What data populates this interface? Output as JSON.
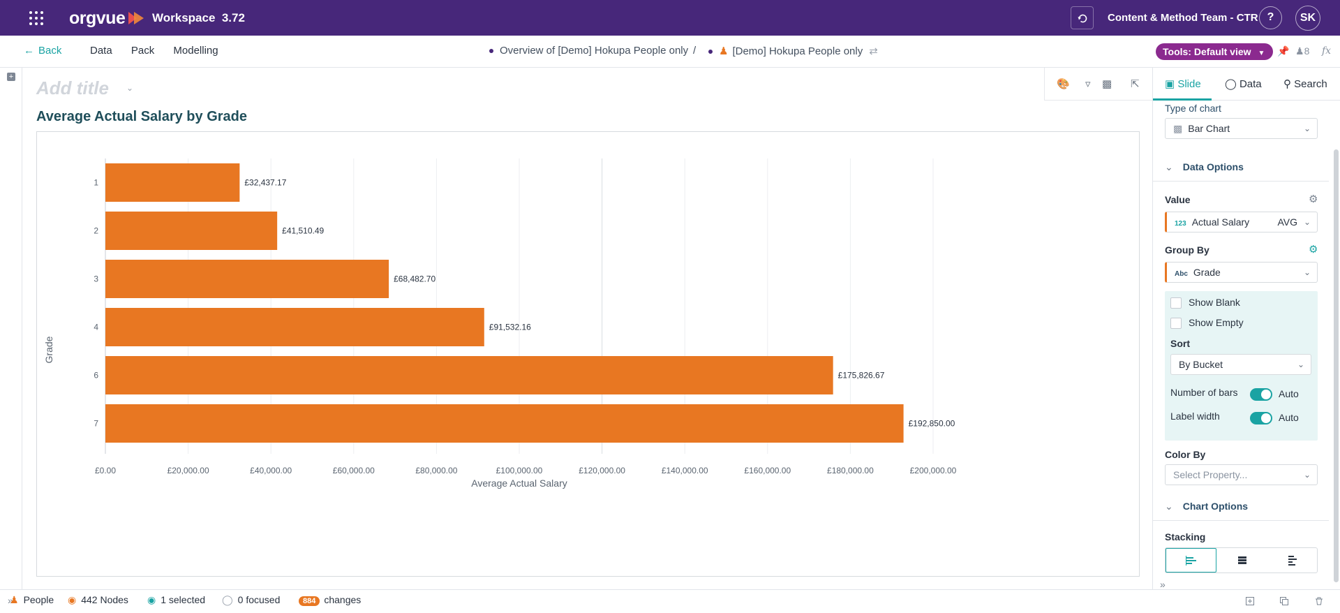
{
  "topbar": {
    "brand": "orgvue",
    "workspace": "Workspace  3.72",
    "team": "Content & Method Team - CTR",
    "help": "?",
    "user_initials": "SK"
  },
  "nav": {
    "back": "Back",
    "menu": [
      "Data",
      "Pack",
      "Modelling"
    ],
    "crumb_view": "Overview of [Demo] Hokupa People only",
    "crumb_sep": "/",
    "crumb_dataset": "[Demo] Hokupa People only",
    "tools_pill": "Tools: Default view",
    "user_count": "8"
  },
  "canvas": {
    "add_title_placeholder": "Add title",
    "chart_title": "Average Actual Salary by Grade"
  },
  "chart_data": {
    "type": "bar",
    "orientation": "horizontal",
    "title": "Average Actual Salary by Grade",
    "xlabel": "Average Actual Salary",
    "ylabel": "Grade",
    "categories": [
      "1",
      "2",
      "3",
      "4",
      "6",
      "7"
    ],
    "values": [
      32437.17,
      41510.49,
      68482.7,
      91532.16,
      175826.67,
      192850.0
    ],
    "value_labels": [
      "£32,437.17",
      "£41,510.49",
      "£68,482.70",
      "£91,532.16",
      "£175,826.67",
      "£192,850.00"
    ],
    "xlim": [
      0,
      200000
    ],
    "xticks": [
      0,
      20000,
      40000,
      60000,
      80000,
      100000,
      120000,
      140000,
      160000,
      180000,
      200000
    ],
    "xtick_labels": [
      "£0.00",
      "£20,000.00",
      "£40,000.00",
      "£60,000.00",
      "£80,000.00",
      "£100,000.00",
      "£120,000.00",
      "£140,000.00",
      "£160,000.00",
      "£180,000.00",
      "£200,000.00"
    ],
    "grid": true,
    "bar_color": "#e87722"
  },
  "panel": {
    "tabs": [
      "Slide",
      "Data",
      "Search"
    ],
    "type_of_chart_label": "Type of chart",
    "chart_type": "Bar Chart",
    "data_options": "Data Options",
    "value_label": "Value",
    "value_type": "123",
    "value_field": "Actual Salary",
    "value_agg": "AVG",
    "group_by_label": "Group By",
    "group_type": "Abc",
    "group_field": "Grade",
    "show_blank": "Show Blank",
    "show_empty": "Show Empty",
    "sort_label": "Sort",
    "sort_value": "By Bucket",
    "number_of_bars": "Number of bars",
    "number_of_bars_mode": "Auto",
    "label_width": "Label width",
    "label_width_mode": "Auto",
    "color_by_label": "Color By",
    "color_by_placeholder": "Select Property...",
    "chart_options": "Chart Options",
    "stacking_label": "Stacking"
  },
  "footer": {
    "people": "People",
    "nodes": "442 Nodes",
    "selected": "1 selected",
    "focused": "0 focused",
    "changes_count": "884",
    "changes": "changes"
  },
  "colors": {
    "topbar": "#47277a",
    "accent": "#1aa3a3",
    "bar": "#e87722",
    "pill": "#8b2a8f"
  }
}
